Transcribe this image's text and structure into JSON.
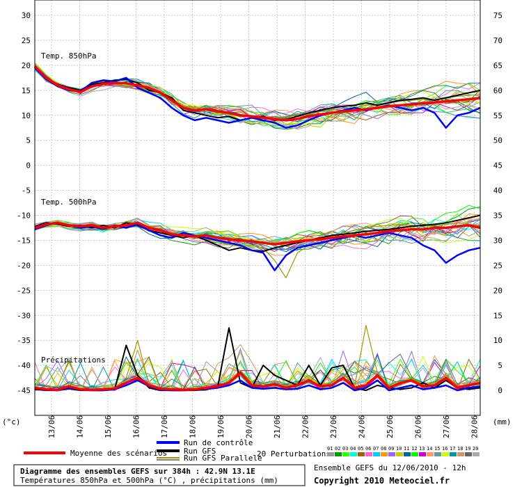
{
  "chart_data": {
    "type": "line",
    "left_axis": {
      "unit": "(°c)",
      "ticks": [
        "30",
        "25",
        "20",
        "15",
        "10",
        "5",
        "0",
        "-5",
        "-10",
        "-15",
        "-20",
        "-25",
        "-30",
        "-35",
        "-40",
        "-45"
      ],
      "ylim": [
        -50,
        30
      ]
    },
    "right_axis": {
      "unit": "(mm)",
      "ticks": [
        "75",
        "70",
        "65",
        "60",
        "55",
        "50",
        "45",
        "40",
        "35",
        "30",
        "25",
        "20",
        "15",
        "10",
        "5",
        "0"
      ]
    },
    "x_ticks": [
      "13/06",
      "14/06",
      "15/06",
      "16/06",
      "17/06",
      "18/06",
      "19/06",
      "20/06",
      "21/06",
      "22/06",
      "23/06",
      "24/06",
      "25/06",
      "26/06",
      "27/06",
      "28/06"
    ],
    "grid": true,
    "panels": {
      "t850": "Temp. 850hPa",
      "t500": "Temp. 500hPa",
      "precip": "Précipitations"
    },
    "series": [
      {
        "name": "Moyenne des scénarios",
        "color": "#ff0000",
        "panel": "t850",
        "values": [
          19.8,
          17.5,
          16.0,
          15.2,
          14.7,
          15.8,
          16.3,
          16.5,
          16.4,
          16.0,
          15.5,
          14.5,
          13.0,
          11.5,
          11.0,
          11.2,
          10.8,
          10.5,
          10.0,
          9.8,
          9.5,
          9.2,
          9.0,
          9.3,
          9.8,
          10.2,
          10.5,
          10.8,
          11.0,
          11.2,
          11.5,
          11.8,
          12.0,
          12.2,
          12.4,
          12.6,
          12.8,
          13.0,
          13.2,
          13.5
        ]
      },
      {
        "name": "Run de contrôle",
        "color": "#0000ff",
        "panel": "t850",
        "values": [
          19.5,
          17.2,
          15.8,
          15.0,
          14.8,
          16.5,
          17.0,
          16.8,
          17.5,
          15.5,
          14.5,
          13.5,
          11.5,
          10.0,
          9.0,
          9.5,
          9.0,
          8.5,
          9.0,
          9.5,
          9.0,
          8.5,
          7.5,
          8.0,
          9.0,
          10.0,
          10.5,
          11.0,
          11.5,
          11.0,
          11.5,
          12.0,
          11.5,
          11.0,
          11.5,
          10.5,
          7.5,
          10.0,
          10.5,
          11.5
        ]
      },
      {
        "name": "Run GFS",
        "color": "#000000",
        "panel": "t850",
        "values": [
          19.6,
          17.3,
          16.2,
          15.5,
          15.0,
          16.2,
          16.5,
          17.0,
          17.2,
          16.5,
          15.0,
          14.5,
          13.5,
          11.0,
          10.5,
          10.0,
          9.5,
          9.8,
          9.0,
          9.5,
          9.8,
          9.0,
          9.2,
          9.8,
          10.5,
          11.0,
          11.5,
          11.8,
          12.0,
          12.5,
          12.0,
          12.5,
          13.0,
          13.2,
          13.5,
          13.0,
          13.5,
          14.0,
          14.5,
          15.0
        ]
      },
      {
        "name": "Run GFS Parallele",
        "color": "#999900",
        "panel": "t850",
        "values": [
          19.7,
          17.0,
          16.5,
          15.0,
          14.5,
          16.0,
          16.8,
          16.2,
          15.8,
          15.8,
          15.2,
          14.8,
          13.2,
          12.0,
          11.5,
          11.0,
          10.5,
          10.2,
          9.8,
          10.0,
          9.5,
          9.5,
          9.8,
          10.0,
          10.2,
          10.8,
          11.2,
          11.0,
          11.5,
          12.0,
          12.2,
          12.5,
          12.8,
          13.0,
          13.2,
          13.0,
          13.5,
          13.8,
          14.0,
          14.2
        ]
      },
      {
        "name": "Moyenne des scénarios",
        "color": "#ff0000",
        "panel": "t500",
        "values": [
          -12.5,
          -11.8,
          -11.5,
          -12.0,
          -12.2,
          -12.0,
          -12.5,
          -12.2,
          -12.0,
          -11.5,
          -12.5,
          -13.0,
          -13.8,
          -14.0,
          -14.2,
          -14.0,
          -14.5,
          -14.8,
          -15.0,
          -15.2,
          -15.5,
          -15.8,
          -15.5,
          -15.2,
          -15.0,
          -14.8,
          -14.5,
          -14.2,
          -14.0,
          -13.8,
          -13.5,
          -13.2,
          -13.0,
          -12.8,
          -12.8,
          -12.5,
          -12.5,
          -12.2,
          -12.0,
          -12.5
        ]
      },
      {
        "name": "Run de contrôle",
        "color": "#0000ff",
        "panel": "t500",
        "values": [
          -12.8,
          -12.0,
          -11.5,
          -12.0,
          -12.5,
          -12.2,
          -12.8,
          -12.0,
          -12.5,
          -11.8,
          -13.0,
          -14.0,
          -14.5,
          -13.5,
          -14.0,
          -14.5,
          -15.0,
          -15.5,
          -16.0,
          -17.0,
          -17.5,
          -21.0,
          -18.0,
          -16.5,
          -16.0,
          -15.5,
          -15.0,
          -14.5,
          -14.0,
          -14.5,
          -14.0,
          -13.5,
          -14.0,
          -14.5,
          -16.0,
          -17.0,
          -19.5,
          -18.0,
          -17.0,
          -16.5
        ]
      },
      {
        "name": "Run GFS",
        "color": "#000000",
        "panel": "t500",
        "values": [
          -12.3,
          -11.5,
          -11.8,
          -12.2,
          -12.0,
          -12.5,
          -12.0,
          -12.5,
          -11.5,
          -12.0,
          -13.0,
          -13.5,
          -14.0,
          -14.5,
          -14.0,
          -15.0,
          -16.0,
          -17.0,
          -16.5,
          -17.0,
          -17.2,
          -16.5,
          -16.0,
          -15.5,
          -15.0,
          -14.5,
          -14.0,
          -13.8,
          -13.5,
          -13.2,
          -13.0,
          -12.8,
          -12.5,
          -12.2,
          -12.0,
          -11.8,
          -11.5,
          -11.0,
          -10.5,
          -10.0
        ]
      },
      {
        "name": "Run GFS Parallele",
        "color": "#999900",
        "panel": "t500",
        "values": [
          -12.4,
          -11.7,
          -11.6,
          -12.1,
          -12.3,
          -11.8,
          -12.2,
          -12.6,
          -11.2,
          -11.9,
          -12.8,
          -13.2,
          -13.5,
          -14.2,
          -14.5,
          -14.8,
          -15.2,
          -15.8,
          -16.2,
          -16.0,
          -16.5,
          -19.0,
          -22.5,
          -17.5,
          -16.0,
          -15.0,
          -14.2,
          -13.5,
          -13.0,
          -12.5,
          -12.2,
          -12.0,
          -11.8,
          -12.0,
          -12.2,
          -12.0,
          -11.8,
          -11.5,
          -11.8,
          -12.0
        ]
      },
      {
        "name": "Moyenne des scénarios",
        "color": "#ff0000",
        "panel": "precip",
        "values": [
          0.5,
          0.2,
          0.1,
          0.8,
          0.2,
          0.1,
          0.2,
          0.4,
          1.5,
          2.5,
          1.0,
          0.3,
          0.2,
          0.1,
          0.2,
          0.5,
          0.8,
          1.5,
          3.5,
          1.0,
          0.8,
          1.2,
          0.5,
          1.0,
          2.0,
          0.8,
          1.0,
          2.5,
          0.5,
          1.0,
          3.0,
          0.5,
          1.5,
          2.0,
          0.8,
          1.0,
          2.5,
          0.5,
          1.0,
          1.5
        ]
      },
      {
        "name": "Run de contrôle",
        "color": "#0000ff",
        "panel": "precip",
        "values": [
          0.3,
          0.1,
          0.0,
          0.5,
          0.1,
          0.0,
          0.0,
          0.2,
          1.0,
          2.0,
          0.8,
          0.1,
          0.0,
          0.0,
          0.1,
          0.3,
          0.5,
          1.0,
          2.0,
          0.5,
          0.3,
          0.5,
          0.2,
          0.3,
          1.0,
          0.2,
          0.5,
          1.5,
          0.0,
          0.5,
          2.0,
          0.0,
          0.5,
          1.0,
          0.2,
          0.5,
          1.0,
          0.0,
          0.5,
          0.8
        ]
      },
      {
        "name": "Run GFS",
        "color": "#000000",
        "panel": "precip",
        "values": [
          0.2,
          0.0,
          0.0,
          0.3,
          0.0,
          0.0,
          0.2,
          0.3,
          9.0,
          3.0,
          0.5,
          0.0,
          0.0,
          0.0,
          0.0,
          0.2,
          0.5,
          12.5,
          1.5,
          0.5,
          5.0,
          3.0,
          2.0,
          1.0,
          5.0,
          1.0,
          4.5,
          5.0,
          0.5,
          0.0,
          1.0,
          0.5,
          0.2,
          0.5,
          1.5,
          0.5,
          2.0,
          0.5,
          0.2,
          0.5
        ]
      },
      {
        "name": "Run GFS Parallele",
        "color": "#999900",
        "panel": "precip",
        "values": [
          0.4,
          0.1,
          0.0,
          0.6,
          0.1,
          0.0,
          0.1,
          0.5,
          2.5,
          10.0,
          1.0,
          0.2,
          0.1,
          0.0,
          0.1,
          0.4,
          0.6,
          2.0,
          4.0,
          1.5,
          0.6,
          1.8,
          0.8,
          1.5,
          3.0,
          1.2,
          1.5,
          3.5,
          0.8,
          13.0,
          3.5,
          0.8,
          1.0,
          2.5,
          1.0,
          1.5,
          3.0,
          0.8,
          1.2,
          2.0
        ]
      }
    ]
  },
  "legend": {
    "mean": "Moyenne des scénarios",
    "control": "Run de contrôle",
    "gfs": "Run GFS",
    "gfs_par": "Run GFS Parallele",
    "perturbations": "20 Perturbations",
    "numbers": [
      "01",
      "02",
      "03",
      "04",
      "05",
      "06",
      "07",
      "08",
      "09",
      "10",
      "11",
      "12",
      "13",
      "14",
      "15",
      "16",
      "17",
      "18",
      "19",
      "20"
    ],
    "colors": [
      "#999999",
      "#009900",
      "#33ff00",
      "#00ffcc",
      "#996600",
      "#ff66cc",
      "#00ccff",
      "#ff9900",
      "#9966ff",
      "#cccc00",
      "#006699",
      "#00ff00",
      "#cc00cc",
      "#ff9966",
      "#669999",
      "#ccff00",
      "#009999",
      "#cc9966",
      "#666666",
      "#aaaaaa"
    ]
  },
  "footer": {
    "title": "Diagramme des ensembles GEFS sur 384h : 42.9N 13.1E",
    "subtitle": "Températures 850hPa et 500hPa (°C) , précipitations (mm)",
    "run": "Ensemble GEFS du 12/06/2010 - 12h",
    "copyright": "Copyright 2010 Meteociel.fr"
  }
}
